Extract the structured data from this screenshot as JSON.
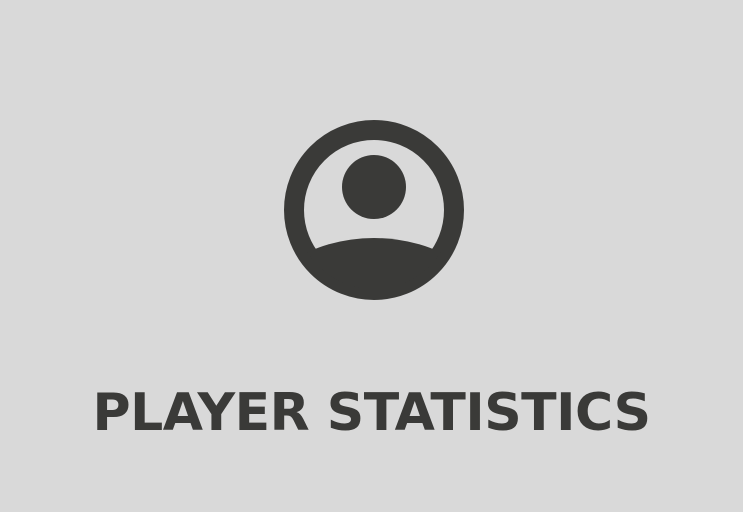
{
  "tile": {
    "label": "PLAYER STATISTICS",
    "icon": "user-circle-icon"
  },
  "colors": {
    "background": "#d9d9d9",
    "foreground": "#3a3a38"
  }
}
